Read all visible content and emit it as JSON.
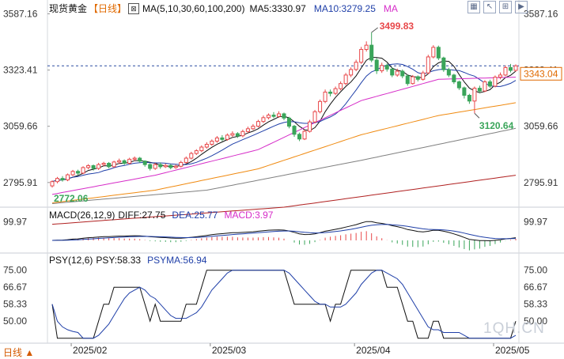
{
  "header": {
    "instrument": "现货黄金",
    "period": "【日线】",
    "ma_label": "MA(5,10,30,60,100,200)",
    "ma5": "MA5:3330.97",
    "ma10": "MA10:3279.25",
    "ma_more": "MA"
  },
  "window_controls": [
    "▦",
    "↖",
    "⊞",
    "▶"
  ],
  "macd_header": {
    "title": "MACD(26,12,9)",
    "diff": "DIFF:27.75",
    "dea": "DEA:25.77",
    "macd": "MACD:3.97"
  },
  "psy_header": {
    "title": "PSY(12,6)",
    "psy": "PSY:58.33",
    "psyma": "PSYMA:56.94"
  },
  "period_tab": "日线 ▲",
  "watermark": "1QH.CN",
  "price_labels": {
    "current": "3343.04",
    "high": "3499.83",
    "low_recent": "3120.64",
    "low_early": "2772.06"
  },
  "colors": {
    "up": "#e8484a",
    "down": "#3aa55a",
    "ma5": "#111111",
    "ma10": "#1f3fa8",
    "ma30": "#d62cc8",
    "ma60": "#f08a10",
    "ma100": "#808080",
    "ma200": "#b02020",
    "diff": "#111111",
    "dea": "#1f3fa8",
    "macd_up": "#e8484a",
    "macd_down": "#3aa55a",
    "psy": "#111111",
    "psyma": "#1f3fa8",
    "accent": "#e06a00"
  },
  "chart_data": [
    {
      "type": "candlestick",
      "title": "现货黄金【日线】",
      "x_ticks": [
        "2025/02",
        "2025/03",
        "2025/04",
        "2025/05"
      ],
      "y_ticks": [
        "3587.16",
        "3323.41",
        "3059.66",
        "2795.91"
      ],
      "ylim": [
        2695,
        3600
      ],
      "reference_line": 3343.04,
      "annotations": [
        {
          "label": "3499.83",
          "index": 62,
          "value": 3499.83
        },
        {
          "label": "3120.64",
          "index": 82,
          "value": 3120.64
        },
        {
          "label": "2772.06",
          "index": 0,
          "value": 2772.06
        }
      ],
      "candles": [
        [
          2780,
          2800,
          2772.06,
          2806
        ],
        [
          2800,
          2815,
          2792,
          2822
        ],
        [
          2815,
          2808,
          2800,
          2826
        ],
        [
          2808,
          2832,
          2802,
          2838
        ],
        [
          2832,
          2848,
          2826,
          2855
        ],
        [
          2848,
          2840,
          2830,
          2856
        ],
        [
          2840,
          2866,
          2835,
          2872
        ],
        [
          2866,
          2875,
          2858,
          2882
        ],
        [
          2875,
          2862,
          2852,
          2880
        ],
        [
          2862,
          2880,
          2855,
          2888
        ],
        [
          2880,
          2886,
          2872,
          2893
        ],
        [
          2886,
          2870,
          2862,
          2892
        ],
        [
          2870,
          2892,
          2865,
          2898
        ],
        [
          2892,
          2898,
          2884,
          2908
        ],
        [
          2898,
          2886,
          2878,
          2904
        ],
        [
          2886,
          2905,
          2880,
          2912
        ],
        [
          2905,
          2910,
          2896,
          2918
        ],
        [
          2910,
          2896,
          2888,
          2916
        ],
        [
          2896,
          2880,
          2870,
          2900
        ],
        [
          2880,
          2862,
          2852,
          2886
        ],
        [
          2862,
          2880,
          2855,
          2888
        ],
        [
          2880,
          2870,
          2860,
          2890
        ],
        [
          2870,
          2876,
          2864,
          2884
        ],
        [
          2876,
          2866,
          2858,
          2882
        ],
        [
          2866,
          2872,
          2860,
          2880
        ],
        [
          2872,
          2890,
          2866,
          2898
        ],
        [
          2890,
          2910,
          2884,
          2918
        ],
        [
          2910,
          2932,
          2904,
          2940
        ],
        [
          2932,
          2945,
          2925,
          2952
        ],
        [
          2945,
          2962,
          2938,
          2970
        ],
        [
          2962,
          2975,
          2955,
          2985
        ],
        [
          2975,
          2990,
          2968,
          2998
        ],
        [
          2990,
          3005,
          2982,
          3014
        ],
        [
          3005,
          2998,
          2990,
          3018
        ],
        [
          2998,
          3018,
          2992,
          3026
        ],
        [
          3018,
          3025,
          3010,
          3036
        ],
        [
          3025,
          3015,
          3005,
          3032
        ],
        [
          3015,
          3035,
          3008,
          3044
        ],
        [
          3035,
          3048,
          3028,
          3058
        ],
        [
          3048,
          3060,
          3042,
          3070
        ],
        [
          3060,
          3082,
          3054,
          3090
        ],
        [
          3082,
          3100,
          3075,
          3110
        ],
        [
          3100,
          3112,
          3092,
          3120
        ],
        [
          3112,
          3106,
          3098,
          3126
        ],
        [
          3106,
          3118,
          3100,
          3130
        ],
        [
          3118,
          3098,
          3088,
          3124
        ],
        [
          3098,
          3060,
          3050,
          3104
        ],
        [
          3060,
          3022,
          3010,
          3066
        ],
        [
          3022,
          3000,
          2990,
          3030
        ],
        [
          3000,
          3036,
          2995,
          3044
        ],
        [
          3036,
          3080,
          3030,
          3090
        ],
        [
          3080,
          3128,
          3074,
          3136
        ],
        [
          3128,
          3176,
          3120,
          3185
        ],
        [
          3176,
          3220,
          3168,
          3232
        ],
        [
          3220,
          3214,
          3200,
          3232
        ],
        [
          3214,
          3236,
          3206,
          3246
        ],
        [
          3236,
          3260,
          3228,
          3270
        ],
        [
          3260,
          3300,
          3252,
          3310
        ],
        [
          3300,
          3326,
          3290,
          3336
        ],
        [
          3326,
          3360,
          3318,
          3372
        ],
        [
          3360,
          3420,
          3352,
          3432
        ],
        [
          3420,
          3440,
          3410,
          3458
        ],
        [
          3440,
          3370,
          3360,
          3499.83
        ],
        [
          3370,
          3320,
          3305,
          3380
        ],
        [
          3320,
          3345,
          3310,
          3358
        ],
        [
          3345,
          3328,
          3316,
          3354
        ],
        [
          3328,
          3300,
          3290,
          3336
        ],
        [
          3300,
          3318,
          3292,
          3330
        ],
        [
          3318,
          3296,
          3285,
          3326
        ],
        [
          3296,
          3260,
          3250,
          3302
        ],
        [
          3260,
          3292,
          3255,
          3300
        ],
        [
          3292,
          3280,
          3270,
          3298
        ],
        [
          3280,
          3310,
          3274,
          3320
        ],
        [
          3310,
          3385,
          3305,
          3395
        ],
        [
          3385,
          3430,
          3378,
          3440
        ],
        [
          3430,
          3380,
          3370,
          3438
        ],
        [
          3380,
          3325,
          3315,
          3386
        ],
        [
          3325,
          3300,
          3290,
          3334
        ],
        [
          3300,
          3268,
          3258,
          3306
        ],
        [
          3268,
          3240,
          3230,
          3274
        ],
        [
          3240,
          3205,
          3190,
          3246
        ],
        [
          3205,
          3178,
          3165,
          3212
        ],
        [
          3178,
          3238,
          3120.64,
          3246
        ],
        [
          3238,
          3225,
          3214,
          3250
        ],
        [
          3225,
          3268,
          3220,
          3276
        ],
        [
          3268,
          3248,
          3240,
          3278
        ],
        [
          3248,
          3290,
          3242,
          3298
        ],
        [
          3290,
          3300,
          3280,
          3312
        ],
        [
          3300,
          3335,
          3294,
          3345
        ],
        [
          3335,
          3322,
          3312,
          3352
        ],
        [
          3322,
          3343.04,
          3316,
          3350
        ]
      ],
      "moving_averages": [
        {
          "name": "MA5",
          "start": [
            0,
            2790
          ],
          "end": [
            90,
            3330.97
          ]
        },
        {
          "name": "MA10",
          "start": [
            0,
            2780
          ],
          "end": [
            90,
            3279.25
          ]
        },
        {
          "name": "MA30",
          "points": [
            [
              0,
              2740
            ],
            [
              20,
              2830
            ],
            [
              40,
              2950
            ],
            [
              60,
              3180
            ],
            [
              75,
              3280
            ],
            [
              90,
              3290
            ]
          ]
        },
        {
          "name": "MA60",
          "points": [
            [
              0,
              2700
            ],
            [
              20,
              2760
            ],
            [
              40,
              2860
            ],
            [
              60,
              3020
            ],
            [
              75,
              3110
            ],
            [
              90,
              3170
            ]
          ]
        },
        {
          "name": "MA100",
          "points": [
            [
              0,
              2697
            ],
            [
              30,
              2760
            ],
            [
              60,
              2900
            ],
            [
              90,
              3050
            ]
          ]
        },
        {
          "name": "MA200",
          "points": [
            [
              0,
              2600
            ],
            [
              45,
              2680
            ],
            [
              90,
              2830
            ]
          ]
        }
      ]
    },
    {
      "type": "line",
      "title": "MACD(26,12,9)",
      "y_ticks": [
        "99.97"
      ],
      "ylim": [
        -60,
        120
      ],
      "series": [
        {
          "name": "DIFF",
          "last": 27.75
        },
        {
          "name": "DEA",
          "last": 25.77
        },
        {
          "name": "MACD",
          "last": 3.97
        }
      ]
    },
    {
      "type": "line",
      "title": "PSY(12,6)",
      "y_ticks": [
        "75.00",
        "66.67",
        "58.33",
        "50.00"
      ],
      "ylim": [
        40,
        78
      ],
      "series": [
        {
          "name": "PSY",
          "last": 58.33
        },
        {
          "name": "PSYMA",
          "last": 56.94
        }
      ]
    }
  ]
}
